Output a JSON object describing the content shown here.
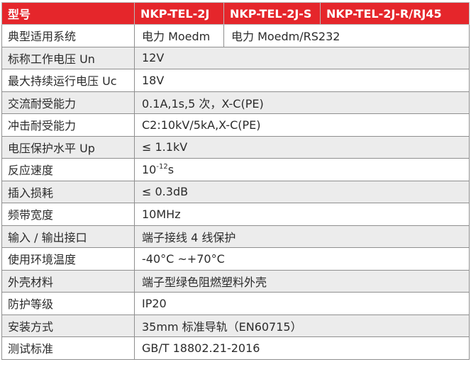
{
  "header": {
    "label": "型号",
    "models": [
      "NKP-TEL-2J",
      "NKP-TEL-2J-S",
      "NKP-TEL-2J-R/RJ45"
    ]
  },
  "rows": [
    {
      "label": "典型适用系统",
      "values": [
        "电力 Moedm",
        "电力 Moedm/RS232"
      ]
    },
    {
      "label": "标称工作电压 Un",
      "value": "12V"
    },
    {
      "label": "最大持续运行电压 Uc",
      "value": "18V"
    },
    {
      "label": "交流耐受能力",
      "value": "0.1A,1s,5 次，X-C(PE)"
    },
    {
      "label": "冲击耐受能力",
      "value": "C2:10kV/5kA,X-C(PE)"
    },
    {
      "label": "电压保护水平 Up",
      "value": "≤ 1.1kV"
    },
    {
      "label": "反应速度",
      "value_base": "10",
      "value_exp": "-12",
      "value_unit": "s"
    },
    {
      "label": "插入损耗",
      "value": "≤ 0.3dB"
    },
    {
      "label": "频带宽度",
      "value": "10MHz"
    },
    {
      "label": "输入 / 输出接口",
      "value": "端子接线 4 线保护"
    },
    {
      "label": "使用环境温度",
      "value": "-40°C ~+70°C"
    },
    {
      "label": "外壳材料",
      "value": "端子型绿色阻燃塑料外壳"
    },
    {
      "label": "防护等级",
      "value": "IP20"
    },
    {
      "label": "安装方式",
      "value": "35mm 标准导轨（EN60715）"
    },
    {
      "label": "测试标准",
      "value": "GB/T 18802.21-2016"
    }
  ],
  "colors": {
    "header_bg": "#e5262b",
    "header_text": "#ffffff",
    "stripe": "#ececec",
    "border": "#8f8f8f"
  }
}
